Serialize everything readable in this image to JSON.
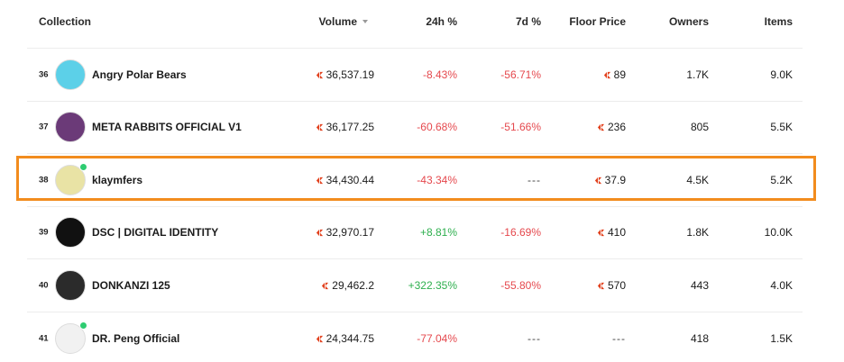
{
  "columns": {
    "collection": "Collection",
    "volume": "Volume",
    "change_24h": "24h %",
    "change_7d": "7d %",
    "floor_price": "Floor Price",
    "owners": "Owners",
    "items": "Items"
  },
  "rows": [
    {
      "rank": "36",
      "name": "Angry Polar Bears",
      "volume": "36,537.19",
      "change_24h": "-8.43%",
      "change_7d": "-56.71%",
      "floor": "89",
      "owners": "1.7K",
      "items": "9.0K",
      "avatar_color": "#5cd0e8",
      "verified": false
    },
    {
      "rank": "37",
      "name": "META RABBITS OFFICIAL V1",
      "volume": "36,177.25",
      "change_24h": "-60.68%",
      "change_7d": "-51.66%",
      "floor": "236",
      "owners": "805",
      "items": "5.5K",
      "avatar_color": "#6b3a78",
      "verified": false
    },
    {
      "rank": "38",
      "name": "klaymfers",
      "volume": "34,430.44",
      "change_24h": "-43.34%",
      "change_7d": "---",
      "floor": "37.9",
      "owners": "4.5K",
      "items": "5.2K",
      "avatar_color": "#e9e3a5",
      "verified": true
    },
    {
      "rank": "39",
      "name": "DSC | DIGITAL IDENTITY",
      "volume": "32,970.17",
      "change_24h": "+8.81%",
      "change_7d": "-16.69%",
      "floor": "410",
      "owners": "1.8K",
      "items": "10.0K",
      "avatar_color": "#111111",
      "verified": false
    },
    {
      "rank": "40",
      "name": "DONKANZI 125",
      "volume": "29,462.2",
      "change_24h": "+322.35%",
      "change_7d": "-55.80%",
      "floor": "570",
      "owners": "443",
      "items": "4.0K",
      "avatar_color": "#2b2b2b",
      "verified": false
    },
    {
      "rank": "41",
      "name": "DR. Peng Official",
      "volume": "24,344.75",
      "change_24h": "-77.04%",
      "change_7d": "---",
      "floor": "---",
      "owners": "418",
      "items": "1.5K",
      "avatar_color": "#f1f1f1",
      "verified": true
    }
  ],
  "colors": {
    "negative": "#e5484d",
    "positive": "#2eaf4e",
    "highlight": "#f28c1e",
    "klay_icon": "#e2421f"
  },
  "icons": {
    "sort": "caret-down-icon",
    "currency": "klay-icon",
    "verified": "verified-dot-icon"
  }
}
